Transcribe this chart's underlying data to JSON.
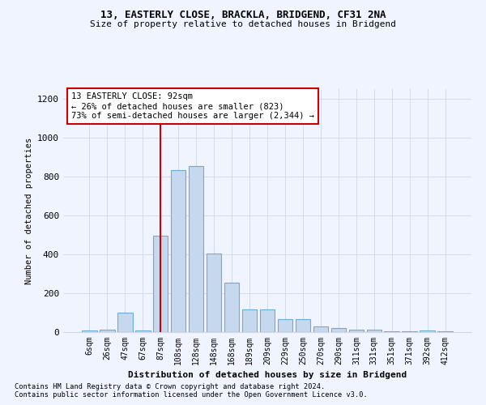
{
  "title1": "13, EASTERLY CLOSE, BRACKLA, BRIDGEND, CF31 2NA",
  "title2": "Size of property relative to detached houses in Bridgend",
  "xlabel": "Distribution of detached houses by size in Bridgend",
  "ylabel": "Number of detached properties",
  "categories": [
    "6sqm",
    "26sqm",
    "47sqm",
    "67sqm",
    "87sqm",
    "108sqm",
    "128sqm",
    "148sqm",
    "168sqm",
    "189sqm",
    "209sqm",
    "229sqm",
    "250sqm",
    "270sqm",
    "290sqm",
    "311sqm",
    "331sqm",
    "351sqm",
    "371sqm",
    "392sqm",
    "412sqm"
  ],
  "values": [
    8,
    12,
    100,
    10,
    495,
    835,
    855,
    405,
    255,
    115,
    115,
    65,
    65,
    30,
    20,
    13,
    13,
    5,
    5,
    10,
    5
  ],
  "bar_color": "#c5d8ed",
  "bar_edge_color": "#6aaed6",
  "vline_x_index": 4,
  "vline_color": "#cc0000",
  "ylim": [
    0,
    1250
  ],
  "yticks": [
    0,
    200,
    400,
    600,
    800,
    1000,
    1200
  ],
  "annotation_text": "13 EASTERLY CLOSE: 92sqm\n← 26% of detached houses are smaller (823)\n73% of semi-detached houses are larger (2,344) →",
  "annotation_box_color": "white",
  "annotation_box_edge_color": "#cc0000",
  "footer1": "Contains HM Land Registry data © Crown copyright and database right 2024.",
  "footer2": "Contains public sector information licensed under the Open Government Licence v3.0.",
  "background_color": "#f0f4ff",
  "grid_color": "#d0d8e8"
}
